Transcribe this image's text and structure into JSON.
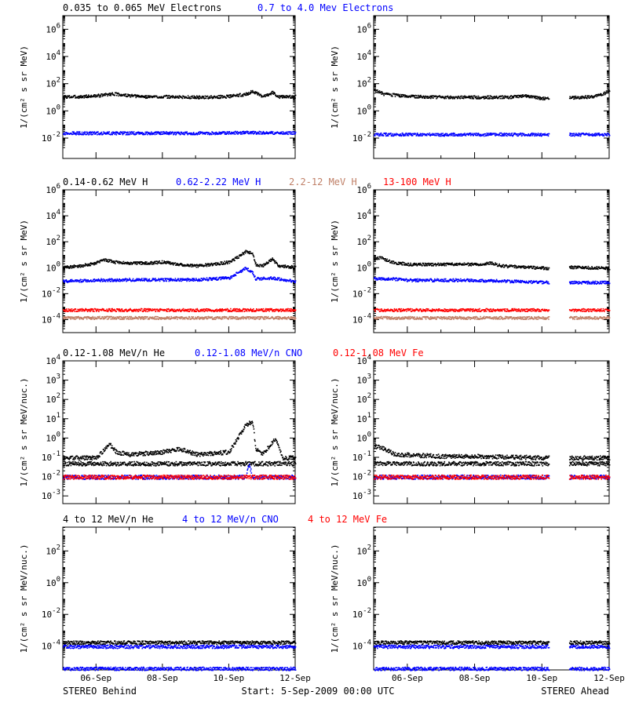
{
  "colors": {
    "black": "#000000",
    "blue": "#0000ff",
    "salmon": "#c08068",
    "red": "#ff0000"
  },
  "footer": {
    "left": "STEREO Behind",
    "center": "Start:  5-Sep-2009 00:00 UTC",
    "right": "STEREO Ahead"
  },
  "chart_data": [
    {
      "type": "scatter",
      "row": 0,
      "legend": [
        {
          "text": "0.035 to 0.065 MeV Electrons",
          "color": "black"
        },
        {
          "text": "0.7 to 4.0 Mev Electrons",
          "color": "blue"
        }
      ],
      "ylabel": "1/(cm² s sr MeV)",
      "yscale": "log",
      "ylim": [
        -3.5,
        7
      ],
      "yticks": [
        6,
        4,
        2,
        0,
        -2
      ],
      "xlabels": [
        "06-Sep",
        "08-Sep",
        "10-Sep",
        "12-Sep"
      ],
      "xlim_days": [
        0,
        7
      ],
      "behind": {
        "series": [
          {
            "color": "black",
            "points": [
              [
                0,
                12
              ],
              [
                0.5,
                12
              ],
              [
                1,
                14
              ],
              [
                1.5,
                20
              ],
              [
                2,
                14
              ],
              [
                2.5,
                12
              ],
              [
                3,
                12
              ],
              [
                4,
                11
              ],
              [
                4.5,
                11
              ],
              [
                5,
                13
              ],
              [
                5.5,
                18
              ],
              [
                5.7,
                30
              ],
              [
                6,
                12
              ],
              [
                6.3,
                25
              ],
              [
                6.5,
                12
              ],
              [
                7,
                12
              ]
            ]
          },
          {
            "color": "blue",
            "points": [
              [
                0,
                0.025
              ],
              [
                2,
                0.025
              ],
              [
                4,
                0.025
              ],
              [
                5.5,
                0.028
              ],
              [
                7,
                0.025
              ]
            ]
          }
        ]
      },
      "ahead": {
        "gap_days": [
          5.2,
          5.8
        ],
        "series": [
          {
            "color": "black",
            "points": [
              [
                0,
                40
              ],
              [
                0.1,
                30
              ],
              [
                0.3,
                18
              ],
              [
                1,
                13
              ],
              [
                2,
                11
              ],
              [
                3,
                11
              ],
              [
                4,
                11
              ],
              [
                4.5,
                14
              ],
              [
                5,
                9
              ],
              [
                5.2,
                9
              ],
              [
                5.8,
                10
              ],
              [
                6.5,
                12
              ],
              [
                6.8,
                18
              ],
              [
                7,
                40
              ]
            ]
          },
          {
            "color": "blue",
            "points": [
              [
                0,
                0.02
              ],
              [
                2,
                0.02
              ],
              [
                4,
                0.02
              ],
              [
                5.2,
                0.02
              ],
              [
                5.8,
                0.02
              ],
              [
                7,
                0.02
              ]
            ]
          }
        ]
      }
    },
    {
      "type": "scatter",
      "row": 1,
      "legend": [
        {
          "text": "0.14-0.62 MeV H",
          "color": "black"
        },
        {
          "text": "0.62-2.22 MeV H",
          "color": "blue"
        },
        {
          "text": "2.2-12 MeV H",
          "color": "salmon"
        },
        {
          "text": "13-100 MeV H",
          "color": "red"
        }
      ],
      "ylabel": "1/(cm² s sr MeV)",
      "yscale": "log",
      "ylim": [
        -5,
        6
      ],
      "yticks": [
        6,
        4,
        2,
        0,
        -2,
        -4
      ],
      "xlabels": [
        "06-Sep",
        "08-Sep",
        "10-Sep",
        "12-Sep"
      ],
      "xlim_days": [
        0,
        7
      ],
      "behind": {
        "series": [
          {
            "color": "black",
            "points": [
              [
                0,
                1.2
              ],
              [
                0.5,
                1.5
              ],
              [
                1,
                2.5
              ],
              [
                1.2,
                5
              ],
              [
                1.5,
                3
              ],
              [
                2,
                2.5
              ],
              [
                2.5,
                2.5
              ],
              [
                3,
                3
              ],
              [
                3.5,
                2
              ],
              [
                4,
                1.5
              ],
              [
                4.5,
                2
              ],
              [
                5,
                3
              ],
              [
                5.3,
                8
              ],
              [
                5.5,
                20
              ],
              [
                5.7,
                15
              ],
              [
                5.8,
                2
              ],
              [
                6,
                1.5
              ],
              [
                6.3,
                5
              ],
              [
                6.5,
                1.5
              ],
              [
                7,
                1.2
              ]
            ]
          },
          {
            "color": "blue",
            "points": [
              [
                0,
                0.1
              ],
              [
                1,
                0.12
              ],
              [
                2,
                0.13
              ],
              [
                3,
                0.13
              ],
              [
                4,
                0.13
              ],
              [
                5,
                0.18
              ],
              [
                5.5,
                1
              ],
              [
                5.7,
                0.5
              ],
              [
                5.8,
                0.15
              ],
              [
                6.3,
                0.18
              ],
              [
                7,
                0.1
              ]
            ]
          },
          {
            "color": "red",
            "points": [
              [
                0,
                0.0006
              ],
              [
                3,
                0.0006
              ],
              [
                7,
                0.0006
              ]
            ]
          },
          {
            "color": "salmon",
            "points": [
              [
                0,
                0.00015
              ],
              [
                3,
                0.00015
              ],
              [
                7,
                0.00015
              ]
            ]
          }
        ]
      },
      "ahead": {
        "gap_days": [
          5.2,
          5.8
        ],
        "series": [
          {
            "color": "black",
            "points": [
              [
                0,
                5
              ],
              [
                0.2,
                7
              ],
              [
                0.5,
                3
              ],
              [
                1,
                2
              ],
              [
                2,
                2
              ],
              [
                3,
                2
              ],
              [
                3.5,
                2.5
              ],
              [
                3.8,
                1.5
              ],
              [
                4.5,
                1.2
              ],
              [
                5.2,
                1
              ],
              [
                5.8,
                1.2
              ],
              [
                7,
                1
              ]
            ]
          },
          {
            "color": "blue",
            "points": [
              [
                0,
                0.15
              ],
              [
                0.5,
                0.15
              ],
              [
                1,
                0.12
              ],
              [
                3,
                0.12
              ],
              [
                4,
                0.1
              ],
              [
                5.2,
                0.08
              ],
              [
                5.8,
                0.08
              ],
              [
                7,
                0.08
              ]
            ]
          },
          {
            "color": "red",
            "points": [
              [
                0,
                0.0006
              ],
              [
                5.2,
                0.0006
              ],
              [
                5.8,
                0.0006
              ],
              [
                7,
                0.0006
              ]
            ]
          },
          {
            "color": "salmon",
            "points": [
              [
                0,
                0.00015
              ],
              [
                5.2,
                0.00015
              ],
              [
                5.8,
                0.00015
              ],
              [
                7,
                0.00015
              ]
            ]
          }
        ]
      }
    },
    {
      "type": "scatter",
      "row": 2,
      "legend": [
        {
          "text": "0.12-1.08 MeV/n He",
          "color": "black"
        },
        {
          "text": "0.12-1.08 MeV/n CNO",
          "color": "blue"
        },
        {
          "text": "0.12-1.08 MeV Fe",
          "color": "red"
        }
      ],
      "ylabel": "1/(cm² s sr MeV/nuc.)",
      "yscale": "log",
      "ylim": [
        -3.4,
        4
      ],
      "yticks": [
        4,
        3,
        2,
        1,
        0,
        -1,
        -2,
        -3
      ],
      "xlabels": [
        "06-Sep",
        "08-Sep",
        "10-Sep",
        "12-Sep"
      ],
      "xlim_days": [
        0,
        7
      ],
      "behind": {
        "series": [
          {
            "color": "black",
            "points": [
              [
                0,
                0.1
              ],
              [
                1,
                0.1
              ],
              [
                1.4,
                0.5
              ],
              [
                1.6,
                0.2
              ],
              [
                2,
                0.15
              ],
              [
                3,
                0.2
              ],
              [
                3.5,
                0.3
              ],
              [
                4,
                0.15
              ],
              [
                5,
                0.2
              ],
              [
                5.5,
                5
              ],
              [
                5.7,
                8
              ],
              [
                5.8,
                0.3
              ],
              [
                6,
                0.15
              ],
              [
                6.4,
                1
              ],
              [
                6.6,
                0.1
              ],
              [
                7,
                0.1
              ]
            ]
          },
          {
            "color": "black",
            "points": [
              [
                0,
                0.05
              ],
              [
                7,
                0.05
              ]
            ]
          },
          {
            "color": "blue",
            "points": [
              [
                0,
                0.01
              ],
              [
                5.5,
                0.01
              ],
              [
                5.6,
                0.05
              ],
              [
                5.7,
                0.01
              ],
              [
                7,
                0.01
              ]
            ]
          },
          {
            "color": "red",
            "points": [
              [
                0,
                0.01
              ],
              [
                7,
                0.01
              ]
            ]
          }
        ]
      },
      "ahead": {
        "gap_days": [
          5.2,
          5.8
        ],
        "series": [
          {
            "color": "black",
            "points": [
              [
                0,
                0.4
              ],
              [
                0.3,
                0.3
              ],
              [
                0.6,
                0.15
              ],
              [
                2,
                0.12
              ],
              [
                3,
                0.12
              ],
              [
                5.2,
                0.1
              ],
              [
                5.8,
                0.1
              ],
              [
                7,
                0.1
              ]
            ]
          },
          {
            "color": "black",
            "points": [
              [
                0,
                0.05
              ],
              [
                5.2,
                0.05
              ],
              [
                5.8,
                0.05
              ],
              [
                7,
                0.05
              ]
            ]
          },
          {
            "color": "blue",
            "points": [
              [
                0,
                0.01
              ],
              [
                5.2,
                0.01
              ],
              [
                5.8,
                0.01
              ],
              [
                7,
                0.01
              ]
            ]
          },
          {
            "color": "red",
            "points": [
              [
                0,
                0.01
              ],
              [
                5.2,
                0.01
              ],
              [
                5.8,
                0.01
              ],
              [
                7,
                0.01
              ]
            ]
          }
        ]
      }
    },
    {
      "type": "scatter",
      "row": 3,
      "legend": [
        {
          "text": "4 to 12 MeV/n He",
          "color": "black"
        },
        {
          "text": "4 to 12 MeV/n CNO",
          "color": "blue"
        },
        {
          "text": "4 to 12 MeV Fe",
          "color": "red"
        }
      ],
      "ylabel": "1/(cm² s sr MeV/nuc.)",
      "yscale": "log",
      "ylim": [
        -5.5,
        3.5
      ],
      "yticks": [
        2,
        0,
        -2,
        -4
      ],
      "xlabels": [
        "06-Sep",
        "08-Sep",
        "10-Sep",
        "12-Sep"
      ],
      "xlim_days": [
        0,
        7
      ],
      "behind": {
        "series": [
          {
            "color": "blue",
            "points": [
              [
                0,
                0.0001
              ],
              [
                7,
                0.0001
              ]
            ]
          },
          {
            "color": "black",
            "points": [
              [
                0,
                0.00018
              ],
              [
                7,
                0.00018
              ]
            ]
          },
          {
            "color": "blue",
            "points": [
              [
                0,
                4e-06
              ],
              [
                7,
                4e-06
              ]
            ]
          }
        ]
      },
      "ahead": {
        "gap_days": [
          5.2,
          5.8
        ],
        "series": [
          {
            "color": "blue",
            "points": [
              [
                0,
                0.0001
              ],
              [
                5.2,
                0.0001
              ],
              [
                5.8,
                0.0001
              ],
              [
                7,
                0.0001
              ]
            ]
          },
          {
            "color": "black",
            "points": [
              [
                0,
                0.00018
              ],
              [
                5.2,
                0.00018
              ],
              [
                5.8,
                0.00018
              ],
              [
                7,
                0.00018
              ]
            ]
          },
          {
            "color": "blue",
            "points": [
              [
                0,
                4e-06
              ],
              [
                5.2,
                4e-06
              ],
              [
                5.8,
                4e-06
              ],
              [
                7,
                4e-06
              ]
            ]
          }
        ]
      }
    }
  ]
}
